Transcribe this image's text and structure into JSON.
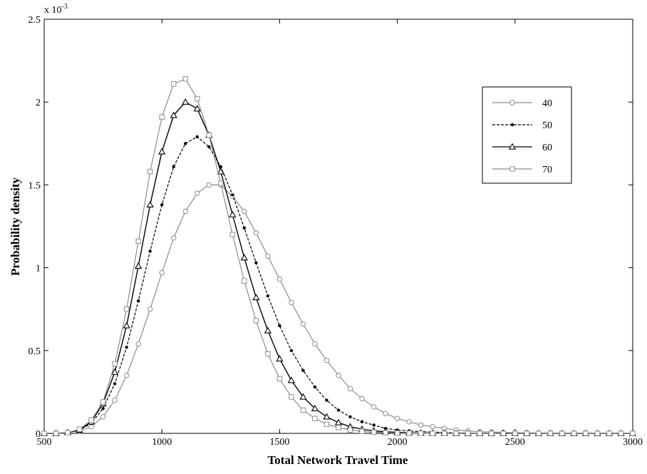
{
  "chart_data": {
    "type": "line",
    "xlabel": "Total Network Travel Time",
    "ylabel": "Probability density",
    "y_multiplier_label": "x 10",
    "y_multiplier_exponent": "-3",
    "xlim": [
      500,
      3000
    ],
    "ylim": [
      0,
      2.5
    ],
    "x_ticks": [
      500,
      1000,
      1500,
      2000,
      2500,
      3000
    ],
    "y_ticks": [
      0,
      0.5,
      1,
      1.5,
      2,
      2.5
    ],
    "x_tick_labels": [
      "500",
      "1000",
      "1500",
      "2000",
      "2500",
      "3000"
    ],
    "y_tick_labels": [
      "0",
      "0.5",
      "1",
      "1.5",
      "2",
      "2.5"
    ],
    "grid": false,
    "legend_position": "top-right",
    "x": [
      500,
      550,
      600,
      650,
      700,
      750,
      800,
      850,
      900,
      950,
      1000,
      1050,
      1100,
      1150,
      1200,
      1250,
      1300,
      1350,
      1400,
      1450,
      1500,
      1550,
      1600,
      1650,
      1700,
      1750,
      1800,
      1850,
      1900,
      1950,
      2000,
      2050,
      2100,
      2150,
      2200,
      2250,
      2300,
      2350,
      2400,
      2450,
      2500,
      2550,
      2600,
      2650,
      2700,
      2750,
      2800,
      2850,
      2900,
      2950,
      3000
    ],
    "series": [
      {
        "name": "40",
        "color": "#8c8c8c",
        "line_style": "solid",
        "marker": "circle",
        "values": [
          0,
          0,
          0.005,
          0.015,
          0.04,
          0.1,
          0.2,
          0.35,
          0.54,
          0.75,
          0.97,
          1.18,
          1.34,
          1.45,
          1.5,
          1.5,
          1.43,
          1.34,
          1.21,
          1.07,
          0.93,
          0.79,
          0.66,
          0.54,
          0.44,
          0.35,
          0.27,
          0.21,
          0.16,
          0.12,
          0.09,
          0.07,
          0.05,
          0.04,
          0.03,
          0.02,
          0.015,
          0.01,
          0.008,
          0.006,
          0.004,
          0.003,
          0.002,
          0.001,
          0.001,
          0,
          0,
          0,
          0,
          0,
          0
        ]
      },
      {
        "name": "50",
        "color": "#000000",
        "line_style": "dashed",
        "marker": "dot",
        "values": [
          0,
          0,
          0.005,
          0.02,
          0.06,
          0.15,
          0.3,
          0.52,
          0.8,
          1.1,
          1.38,
          1.61,
          1.75,
          1.79,
          1.73,
          1.61,
          1.44,
          1.24,
          1.03,
          0.83,
          0.65,
          0.5,
          0.38,
          0.28,
          0.2,
          0.14,
          0.1,
          0.07,
          0.05,
          0.03,
          0.02,
          0.015,
          0.01,
          0.008,
          0.005,
          0.003,
          0.002,
          0.001,
          0.001,
          0,
          0,
          0,
          0,
          0,
          0,
          0,
          0,
          0,
          0,
          0,
          0
        ]
      },
      {
        "name": "60",
        "color": "#000000",
        "line_style": "solid",
        "marker": "triangle",
        "values": [
          0,
          0,
          0.005,
          0.02,
          0.07,
          0.18,
          0.37,
          0.65,
          1.01,
          1.38,
          1.7,
          1.92,
          2.0,
          1.96,
          1.8,
          1.58,
          1.32,
          1.06,
          0.82,
          0.62,
          0.45,
          0.32,
          0.22,
          0.15,
          0.1,
          0.065,
          0.04,
          0.025,
          0.015,
          0.01,
          0.006,
          0.004,
          0.002,
          0.001,
          0.001,
          0,
          0,
          0,
          0,
          0,
          0,
          0,
          0,
          0,
          0,
          0,
          0,
          0,
          0,
          0,
          0
        ]
      },
      {
        "name": "70",
        "color": "#8c8c8c",
        "line_style": "solid",
        "marker": "square",
        "values": [
          0,
          0,
          0.005,
          0.025,
          0.08,
          0.19,
          0.42,
          0.75,
          1.16,
          1.58,
          1.91,
          2.11,
          2.14,
          2.02,
          1.8,
          1.51,
          1.2,
          0.92,
          0.68,
          0.48,
          0.33,
          0.22,
          0.14,
          0.09,
          0.055,
          0.035,
          0.02,
          0.012,
          0.007,
          0.004,
          0.002,
          0.001,
          0.001,
          0,
          0,
          0,
          0,
          0,
          0,
          0,
          0,
          0,
          0,
          0,
          0,
          0,
          0,
          0,
          0,
          0,
          0
        ]
      }
    ]
  }
}
